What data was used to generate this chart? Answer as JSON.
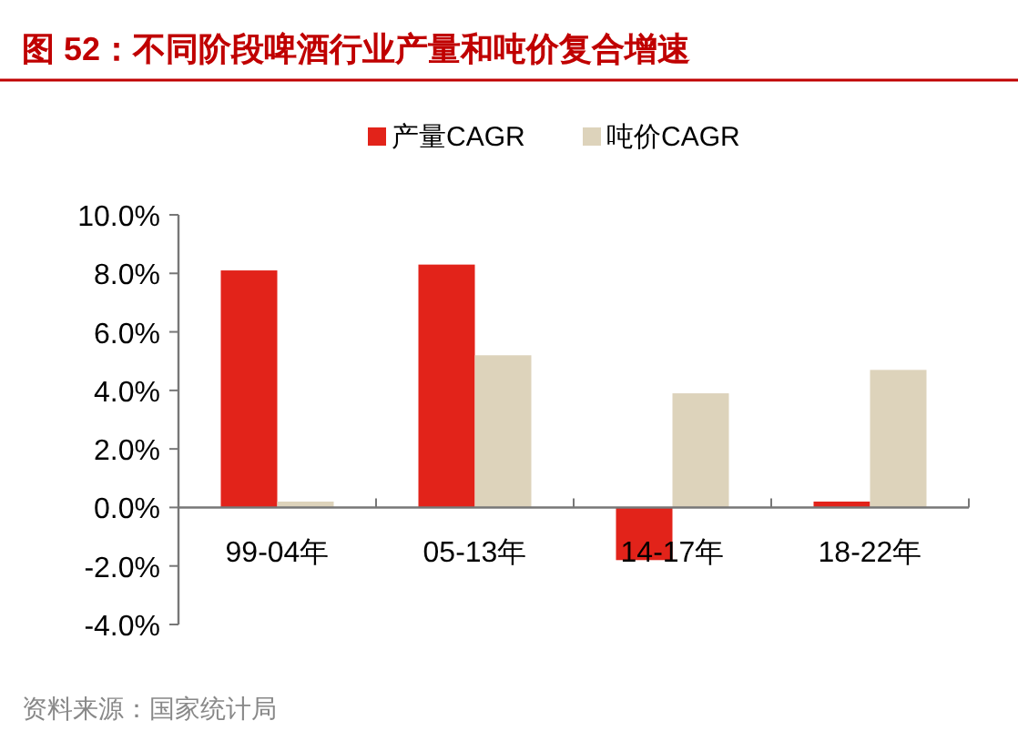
{
  "chart_data": {
    "type": "bar",
    "title": "图 52：不同阶段啤酒行业产量和吨价复合增速",
    "categories": [
      "99-04年",
      "05-13年",
      "14-17年",
      "18-22年"
    ],
    "series": [
      {
        "name": "产量CAGR",
        "color": "#e2231a",
        "values": [
          8.1,
          8.3,
          -1.8,
          0.2
        ]
      },
      {
        "name": "吨价CAGR",
        "color": "#ddd3bb",
        "values": [
          0.2,
          5.2,
          3.9,
          4.7
        ]
      }
    ],
    "ylim": [
      -4,
      10
    ],
    "yticks": [
      {
        "value": -4,
        "label": "-4.0%"
      },
      {
        "value": -2,
        "label": "-2.0%"
      },
      {
        "value": 0,
        "label": "0.0%"
      },
      {
        "value": 2,
        "label": "2.0%"
      },
      {
        "value": 4,
        "label": "4.0%"
      },
      {
        "value": 6,
        "label": "6.0%"
      },
      {
        "value": 8,
        "label": "8.0%"
      },
      {
        "value": 10,
        "label": "10.0%"
      }
    ],
    "grid": false,
    "legend": "top",
    "annotations": [
      "资料来源：国家统计局"
    ]
  }
}
